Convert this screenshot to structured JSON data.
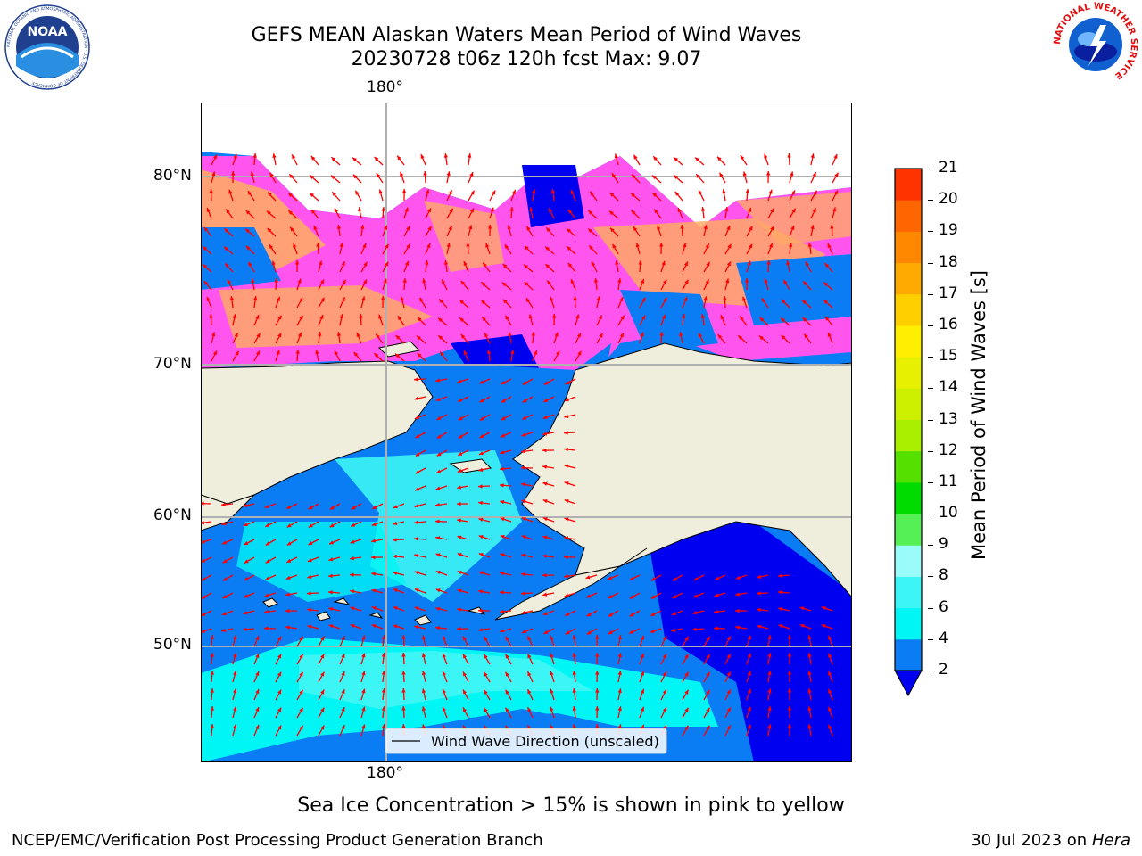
{
  "header": {
    "title_line1": "GEFS MEAN Alaskan Waters Mean Period of Wind Waves",
    "title_line2": "20230728 t06z 120h fcst   Max: 9.07"
  },
  "logos": {
    "left": "NOAA",
    "left_ring_text": "NATIONAL OCEANIC AND ATMOSPHERIC ADMINISTRATION · U.S. DEPARTMENT OF COMMERCE",
    "right_ring_text": "NATIONAL WEATHER SERVICE"
  },
  "map": {
    "lon_top_label": "180°",
    "lon_bottom_label": "180°",
    "lat_labels": [
      "80°N",
      "70°N",
      "60°N",
      "50°N"
    ],
    "legend_label": "Wind Wave Direction (unscaled)",
    "colors": {
      "land": "#efeedd",
      "ocean_2_4": "#0a7df5",
      "ocean_lt2": "#0000f0",
      "ocean_4_6": "#00f5f5",
      "ocean_6_8": "#3cf5f5",
      "ice_pink": "#ff55ee",
      "ice_orange": "#ffaa66",
      "arrow": "#ff0000",
      "grid": "#b0b0b0"
    }
  },
  "colorbar": {
    "label": "Mean Period of Wind Waves [s]",
    "ticks": [
      "2",
      "4",
      "6",
      "8",
      "9",
      "10",
      "11",
      "12",
      "13",
      "14",
      "15",
      "16",
      "17",
      "18",
      "19",
      "20",
      "21"
    ],
    "colors": [
      "#0a7df5",
      "#00f5f5",
      "#3cf5f5",
      "#9afbfb",
      "#55f055",
      "#00dc00",
      "#55e000",
      "#aaee00",
      "#ccf000",
      "#e6f000",
      "#ffee00",
      "#ffd000",
      "#ffaa00",
      "#ff8800",
      "#ff6600",
      "#ff3300",
      "#ff0000"
    ],
    "under_color": "#0000f0"
  },
  "footer": {
    "note": "Sea Ice Concentration > 15% is shown in pink to yellow",
    "left": "NCEP/EMC/Verification Post Processing Product Generation Branch",
    "right_date": "30 Jul 2023 on ",
    "right_machine": "Hera"
  }
}
